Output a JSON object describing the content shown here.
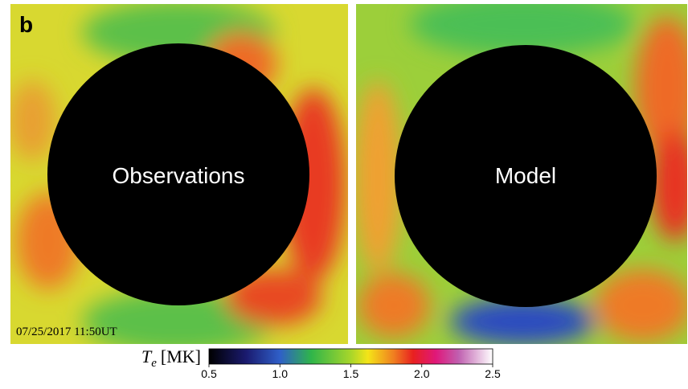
{
  "panel_label": "b",
  "panels": [
    {
      "label": "Observations",
      "timestamp": "07/25/2017 11:50UT"
    },
    {
      "label": "Model"
    }
  ],
  "colorbar": {
    "label_symbol": "T",
    "label_subscript": "e",
    "label_unit": "[MK]",
    "lim": [
      0.5,
      2.5
    ],
    "ticks": [
      0.5,
      {
        "value": 1.0,
        "label": "1.0"
      },
      1.5,
      {
        "value": 2.0,
        "label": "2.0"
      },
      2.5
    ]
  }
}
